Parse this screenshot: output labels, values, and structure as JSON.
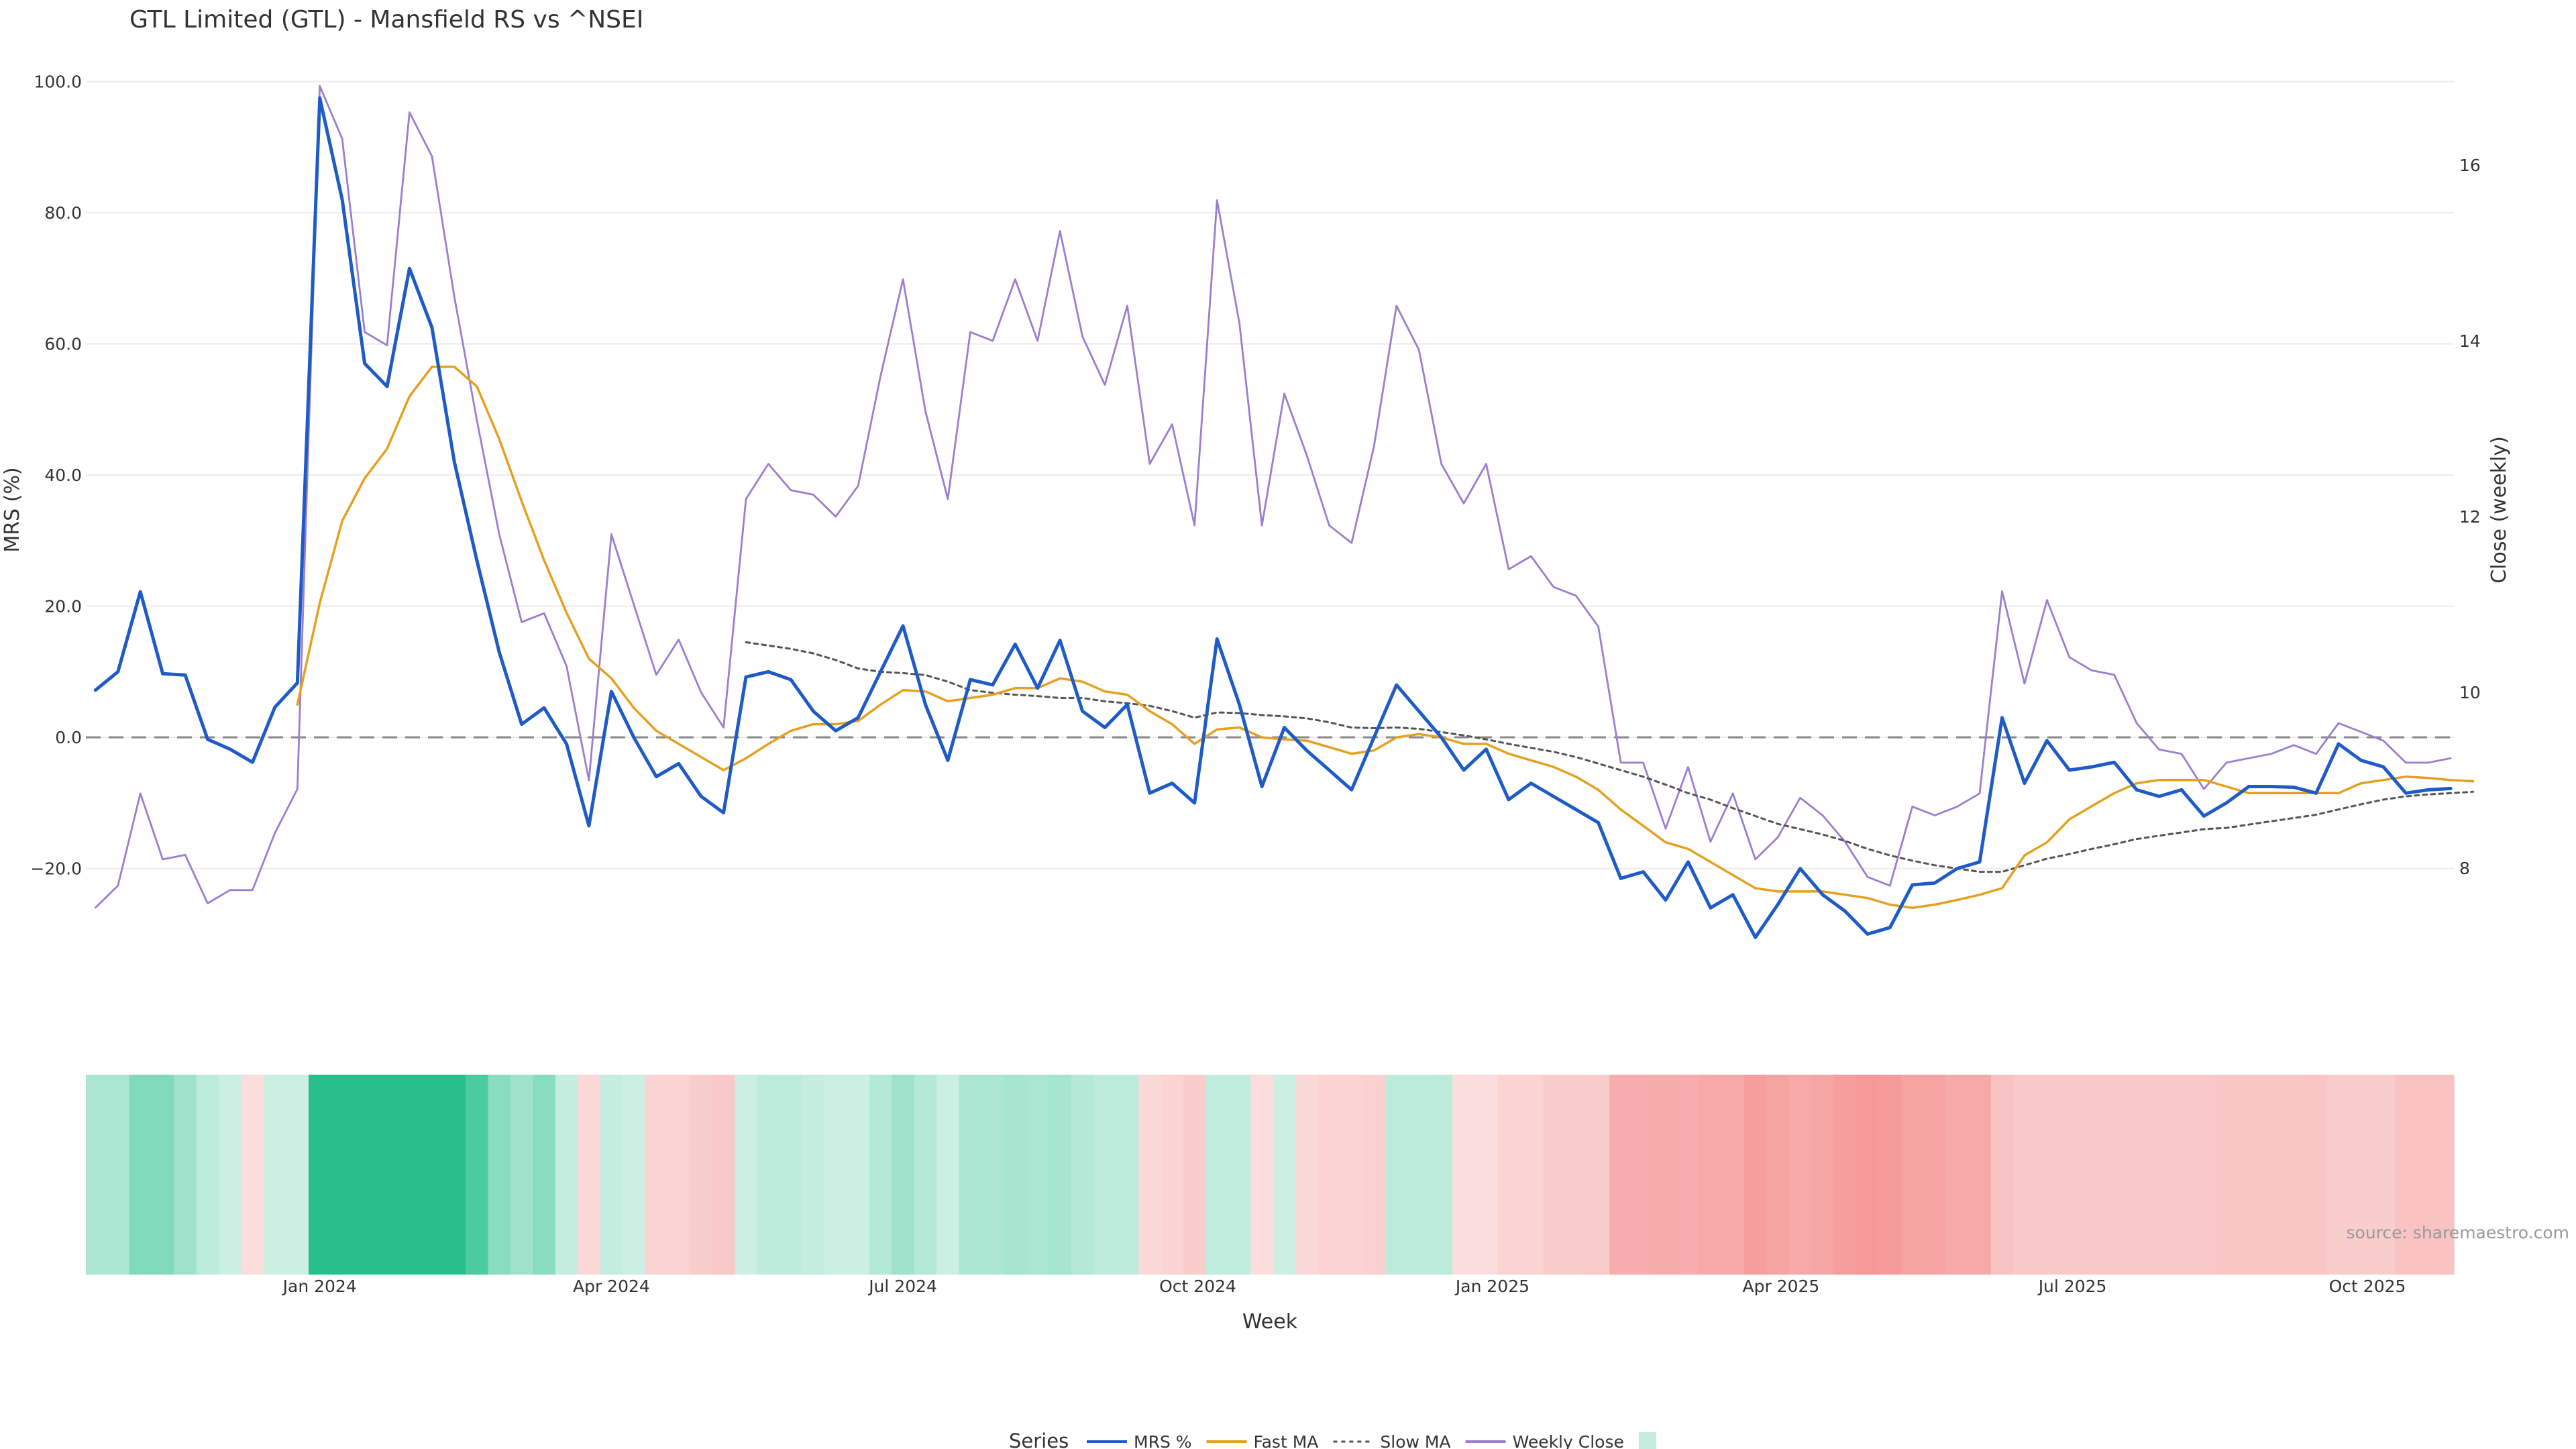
{
  "chart_data": {
    "type": "line",
    "title": "GTL Limited (GTL) - Mansfield RS vs ^NSEI",
    "xlabel": "Week",
    "ylabel": "MRS (%)",
    "y2label": "Close (weekly)",
    "source": "source: sharemaestro.com",
    "start_date": "2023-10-23",
    "x_range": [
      "2023-10-20",
      "2025-10-28"
    ],
    "ylim": [
      -32,
      102
    ],
    "y2lim": [
      7.1,
      17.1
    ],
    "y_ticks": [
      -20,
      0,
      20,
      40,
      60,
      80,
      100
    ],
    "y_tick_labels": [
      "−20.0",
      "0.0",
      "20.0",
      "40.0",
      "60.0",
      "80.0",
      "100.0"
    ],
    "y2_ticks": [
      8,
      10,
      12,
      14,
      16
    ],
    "y2_tick_labels": [
      "8",
      "10",
      "12",
      "14",
      "16"
    ],
    "x_ticks": [
      {
        "date": "2024-01-01",
        "label": "Jan 2024"
      },
      {
        "date": "2024-04-01",
        "label": "Apr 2024"
      },
      {
        "date": "2024-07-01",
        "label": "Jul 2024"
      },
      {
        "date": "2024-10-01",
        "label": "Oct 2024"
      },
      {
        "date": "2025-01-01",
        "label": "Jan 2025"
      },
      {
        "date": "2025-04-01",
        "label": "Apr 2025"
      },
      {
        "date": "2025-07-01",
        "label": "Jul 2025"
      },
      {
        "date": "2025-10-01",
        "label": "Oct 2025"
      }
    ],
    "grid": true,
    "zero_line": true,
    "legend": {
      "title": "Series",
      "position": "bottom-center",
      "items": [
        {
          "label": "MRS %",
          "style": "line",
          "color": "#1f5bc7"
        },
        {
          "label": "Fast MA",
          "style": "line",
          "color": "#e6a020"
        },
        {
          "label": "Slow MA",
          "style": "dotted",
          "color": "#555555"
        },
        {
          "label": "Weekly Close",
          "style": "line",
          "color": "#9a7ecf"
        },
        {
          "label": "",
          "style": "box",
          "color": "#c3ebdf"
        }
      ]
    },
    "series": [
      {
        "name": "MRS %",
        "axis": "y",
        "color": "#1f5bc7",
        "values": [
          7.2,
          10.0,
          22.2,
          9.7,
          9.5,
          -0.3,
          -1.8,
          -3.8,
          4.6,
          8.3,
          97.5,
          82.0,
          57.0,
          53.5,
          71.5,
          62.5,
          42.0,
          27.0,
          13.0,
          2.0,
          4.5,
          -1.0,
          -13.5,
          7.0,
          0.0,
          -6.0,
          -4.0,
          -9.0,
          -11.5,
          9.2,
          10.0,
          8.8,
          4.0,
          1.0,
          3.0,
          10.0,
          17.0,
          5.0,
          -3.5,
          8.8,
          8.0,
          14.2,
          7.5,
          14.8,
          4.0,
          1.5,
          5.0,
          -8.5,
          -7.0,
          -10.0,
          15.0,
          5.0,
          -7.5,
          1.5,
          -2.0,
          -5.0,
          -8.0,
          0.0,
          8.0,
          4.0,
          0.0,
          -5.0,
          -1.8,
          -9.5,
          -7.0,
          -9.0,
          -11.0,
          -13.0,
          -21.5,
          -20.5,
          -24.8,
          -19.0,
          -26.0,
          -24.0,
          -30.5,
          -25.5,
          -20.0,
          -24.0,
          -26.5,
          -30.0,
          -29.0,
          -22.5,
          -22.2,
          -20.0,
          -19.0,
          3.0,
          -7.0,
          -0.5,
          -5.0,
          -4.5,
          -3.8,
          -8.0,
          -9.0,
          -8.0,
          -12.0,
          -10.0,
          -7.5,
          -7.5,
          -7.6,
          -8.5,
          -1.0,
          -3.5,
          -4.5,
          -8.5,
          -8.0,
          -7.8
        ]
      },
      {
        "name": "Fast MA",
        "axis": "y",
        "color": "#e6a020",
        "values": [
          null,
          null,
          null,
          null,
          null,
          null,
          null,
          null,
          null,
          5.0,
          20.5,
          33.0,
          39.5,
          44.0,
          52.0,
          56.5,
          56.5,
          53.5,
          45.5,
          36.0,
          27.0,
          19.0,
          12.0,
          9.0,
          4.5,
          1.0,
          -1.0,
          -3.0,
          -5.0,
          -3.2,
          -1.0,
          1.0,
          2.0,
          2.0,
          2.5,
          5.0,
          7.2,
          7.0,
          5.5,
          6.0,
          6.5,
          7.5,
          7.5,
          9.0,
          8.5,
          7.0,
          6.5,
          4.0,
          2.0,
          -1.0,
          1.2,
          1.5,
          0.0,
          -0.3,
          -0.5,
          -1.5,
          -2.5,
          -2.0,
          0.0,
          0.5,
          0.0,
          -1.0,
          -1.0,
          -2.5,
          -3.5,
          -4.5,
          -6.0,
          -8.0,
          -11.0,
          -13.5,
          -16.0,
          -17.0,
          -19.0,
          -21.0,
          -23.0,
          -23.5,
          -23.5,
          -23.5,
          -24.0,
          -24.5,
          -25.5,
          -26.0,
          -25.5,
          -24.8,
          -24.0,
          -23.0,
          -18.0,
          -16.0,
          -12.5,
          -10.5,
          -8.5,
          -7.0,
          -6.5,
          -6.5,
          -6.5,
          -7.5,
          -8.5,
          -8.5,
          -8.5,
          -8.5,
          -8.5,
          -7.0,
          -6.5,
          -6.0,
          -6.2,
          -6.5,
          -6.7
        ]
      },
      {
        "name": "Slow MA",
        "axis": "y",
        "color": "#555555",
        "values": [
          null,
          null,
          null,
          null,
          null,
          null,
          null,
          null,
          null,
          null,
          null,
          null,
          null,
          null,
          null,
          null,
          null,
          null,
          null,
          null,
          null,
          null,
          null,
          null,
          null,
          null,
          null,
          null,
          null,
          14.5,
          14.0,
          13.5,
          12.8,
          11.8,
          10.5,
          10.0,
          9.8,
          9.5,
          8.5,
          7.2,
          6.8,
          6.5,
          6.3,
          6.0,
          6.0,
          5.5,
          5.2,
          4.8,
          4.0,
          3.0,
          3.8,
          3.7,
          3.4,
          3.2,
          2.9,
          2.3,
          1.5,
          1.4,
          1.5,
          1.3,
          0.8,
          0.3,
          -0.3,
          -1.0,
          -1.6,
          -2.2,
          -3.0,
          -4.0,
          -5.0,
          -6.0,
          -7.2,
          -8.5,
          -9.5,
          -10.8,
          -12.0,
          -13.2,
          -14.0,
          -14.8,
          -15.8,
          -17.0,
          -18.0,
          -18.8,
          -19.5,
          -20.0,
          -20.5,
          -20.5,
          -19.5,
          -18.5,
          -17.8,
          -17.0,
          -16.3,
          -15.5,
          -15.0,
          -14.5,
          -14.0,
          -13.8,
          -13.3,
          -12.8,
          -12.3,
          -11.8,
          -11.0,
          -10.2,
          -9.5,
          -9.0,
          -8.7,
          -8.5,
          -8.3
        ]
      },
      {
        "name": "Weekly Close",
        "axis": "y2",
        "color": "#9a7ecf",
        "values": [
          7.55,
          7.8,
          8.85,
          8.1,
          8.15,
          7.6,
          7.75,
          7.75,
          8.4,
          8.9,
          16.9,
          16.3,
          14.1,
          13.95,
          16.6,
          16.1,
          14.5,
          13.1,
          11.8,
          10.8,
          10.9,
          10.3,
          9.0,
          11.8,
          11.0,
          10.2,
          10.6,
          10.0,
          9.6,
          12.2,
          12.6,
          12.3,
          12.25,
          12.0,
          12.35,
          13.6,
          14.7,
          13.2,
          12.2,
          14.1,
          14.0,
          14.7,
          14.0,
          15.25,
          14.05,
          13.5,
          14.4,
          12.6,
          13.05,
          11.9,
          15.6,
          14.2,
          11.9,
          13.4,
          12.7,
          11.9,
          11.7,
          12.8,
          14.4,
          13.9,
          12.6,
          12.15,
          12.6,
          11.4,
          11.55,
          11.2,
          11.1,
          10.75,
          9.2,
          9.2,
          8.45,
          9.15,
          8.3,
          8.85,
          8.1,
          8.35,
          8.8,
          8.6,
          8.3,
          7.9,
          7.8,
          8.7,
          8.6,
          8.7,
          8.85,
          11.15,
          10.1,
          11.05,
          10.4,
          10.25,
          10.2,
          9.65,
          9.35,
          9.3,
          8.9,
          9.2,
          9.25,
          9.3,
          9.4,
          9.3,
          9.65,
          9.55,
          9.45,
          9.2,
          9.2,
          9.25
        ]
      },
      {
        "name": "",
        "axis": "heatmap",
        "values": [
          8.2,
          8.2,
          14.0,
          14.0,
          10.0,
          6.0,
          4.0,
          -2.0,
          4.0,
          4.0,
          26.0,
          26.0,
          26.0,
          26.0,
          26.0,
          26.0,
          26.0,
          21.0,
          13.0,
          10.0,
          13.0,
          5.0,
          -3.0,
          5.0,
          4.0,
          -4.0,
          -4.0,
          -5.0,
          -6.0,
          4.0,
          6.0,
          6.0,
          5.0,
          4.0,
          4.0,
          7.0,
          10.0,
          7.0,
          4.0,
          8.0,
          8.0,
          9.0,
          8.5,
          9.0,
          7.0,
          6.0,
          6.0,
          -3.0,
          -4.0,
          -5.0,
          5.5,
          5.5,
          -2.0,
          4.0,
          -3.0,
          -4.0,
          -4.0,
          -4.5,
          6.0,
          6.0,
          6.0,
          -2.0,
          -2.0,
          -4.0,
          -4.0,
          -5.0,
          -5.0,
          -5.5,
          -11.0,
          -11.0,
          -11.5,
          -11.0,
          -12.0,
          -12.0,
          -14.0,
          -13.0,
          -12.0,
          -12.5,
          -14.0,
          -15.0,
          -14.5,
          -13.0,
          -13.0,
          -12.0,
          -12.0,
          -7.0,
          -6.0,
          -6.0,
          -6.0,
          -6.0,
          -6.0,
          -6.0,
          -6.0,
          -6.0,
          -6.0,
          -6.5,
          -6.5,
          -6.5,
          -6.5,
          -6.5,
          -5.0,
          -5.0,
          -5.0,
          -7.0,
          -7.0,
          -7.0
        ]
      }
    ]
  }
}
